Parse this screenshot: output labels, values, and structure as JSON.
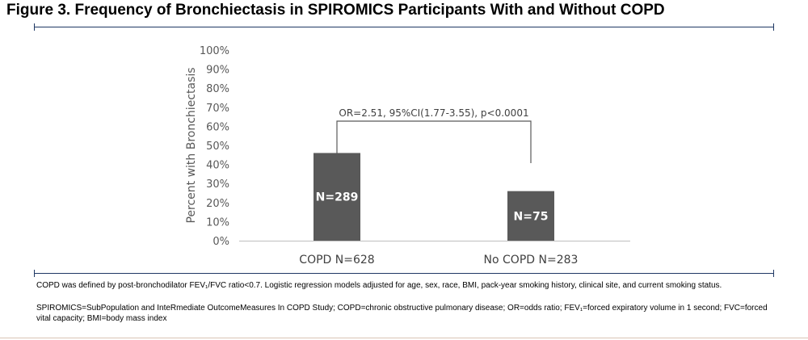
{
  "title": "Figure 3. Frequency of Bronchiectasis in SPIROMICS Participants With and Without COPD",
  "chart_data": {
    "type": "bar",
    "ylabel": "Percent with Bronchiectasis",
    "ylim": [
      0,
      100
    ],
    "yticks": [
      "0%",
      "10%",
      "20%",
      "30%",
      "40%",
      "50%",
      "60%",
      "70%",
      "80%",
      "90%",
      "100%"
    ],
    "categories": [
      "COPD N=628",
      "No COPD N=283"
    ],
    "values": [
      46,
      26
    ],
    "bar_labels": [
      "N=289",
      "N=75"
    ],
    "bar_color": "#595959",
    "annotation": "OR=2.51, 95%CI(1.77-3.55), p<0.0001",
    "grid": false
  },
  "footnotes": {
    "line1": "COPD was defined by post-bronchodilator FEV₁/FVC ratio<0.7. Logistic regression models adjusted for age, sex, race, BMI, pack-year smoking history, clinical site, and current smoking status.",
    "line2": "SPIROMICS=SubPopulation and InteRmediate OutcomeMeasures In COPD Study; COPD=chronic obstructive pulmonary disease; OR=odds ratio; FEV₁=forced expiratory volume in 1 second; FVC=forced vital capacity; BMI=body mass index"
  }
}
